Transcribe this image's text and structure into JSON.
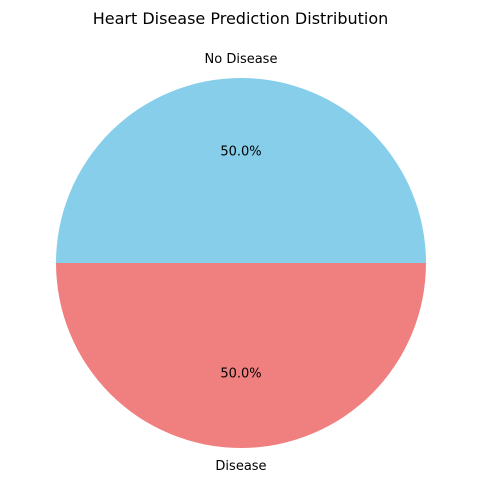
{
  "chart_data": {
    "type": "pie",
    "title": "Heart Disease Prediction Distribution",
    "slices": [
      {
        "label": "No Disease",
        "value": 50.0,
        "pct_label": "50.0%",
        "color": "#87CEEB"
      },
      {
        "label": "Disease",
        "value": 50.0,
        "pct_label": "50.0%",
        "color": "#F08080"
      }
    ],
    "start_angle_deg": 0,
    "direction": "counterclockwise",
    "legend": "none"
  }
}
